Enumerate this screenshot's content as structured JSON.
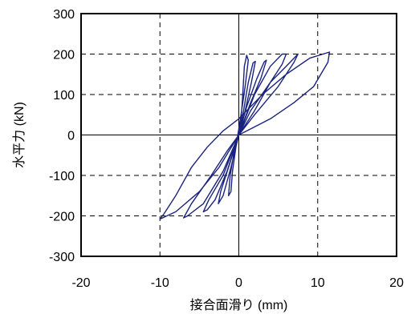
{
  "chart_data": {
    "type": "line",
    "title": "",
    "xlabel": "接合面滑り (mm)",
    "ylabel": "水平力 (kN)",
    "xlim": [
      -20,
      20
    ],
    "ylim": [
      -300,
      300
    ],
    "x_ticks": [
      -20,
      -10,
      0,
      10,
      20
    ],
    "y_ticks": [
      300,
      200,
      100,
      0,
      -100,
      -200,
      -300
    ],
    "x_tick_labels": [
      "-20",
      "-10",
      "0",
      "10",
      "20"
    ],
    "y_tick_labels": [
      "300",
      "200",
      "100",
      "0",
      "-100",
      "-200",
      "-300"
    ],
    "grid": "dashed",
    "legend": "none",
    "line_color": "#1a237e",
    "series": [
      {
        "values": [
          [
            0,
            0
          ],
          [
            0.3,
            40
          ],
          [
            0.5,
            100
          ],
          [
            0.7,
            170
          ],
          [
            1.0,
            197
          ],
          [
            1.2,
            185
          ],
          [
            0.8,
            120
          ],
          [
            0.2,
            40
          ],
          [
            -0.3,
            -20
          ],
          [
            -0.8,
            -90
          ],
          [
            -1.0,
            -140
          ],
          [
            -1.3,
            -150
          ],
          [
            -1.1,
            -100
          ],
          [
            -0.5,
            -30
          ],
          [
            0,
            0
          ],
          [
            0.6,
            60
          ],
          [
            1.2,
            130
          ],
          [
            1.8,
            178
          ],
          [
            2.1,
            182
          ],
          [
            1.6,
            130
          ],
          [
            0.8,
            60
          ],
          [
            0,
            0
          ],
          [
            -1.0,
            -80
          ],
          [
            -2.0,
            -150
          ],
          [
            -2.6,
            -170
          ],
          [
            -2.3,
            -140
          ],
          [
            -1.3,
            -80
          ],
          [
            0,
            0
          ],
          [
            1.0,
            70
          ],
          [
            2.3,
            140
          ],
          [
            3.2,
            180
          ],
          [
            3.5,
            185
          ],
          [
            2.8,
            140
          ],
          [
            1.5,
            80
          ],
          [
            0,
            0
          ],
          [
            -1.5,
            -90
          ],
          [
            -3.0,
            -160
          ],
          [
            -4.0,
            -185
          ],
          [
            -4.5,
            -190
          ],
          [
            -3.8,
            -160
          ],
          [
            -2.0,
            -100
          ],
          [
            0,
            0
          ],
          [
            2.0,
            100
          ],
          [
            4.0,
            170
          ],
          [
            5.5,
            200
          ],
          [
            6.0,
            200
          ],
          [
            5.5,
            175
          ],
          [
            4.0,
            130
          ],
          [
            2.0,
            60
          ],
          [
            0,
            0
          ],
          [
            -2.0,
            -90
          ],
          [
            -4.5,
            -170
          ],
          [
            -6.5,
            -200
          ],
          [
            -7.0,
            -205
          ],
          [
            -6.0,
            -170
          ],
          [
            -3.5,
            -100
          ],
          [
            -1.5,
            -40
          ],
          [
            0,
            0
          ],
          [
            1.5,
            60
          ],
          [
            4.0,
            130
          ],
          [
            6.0,
            170
          ],
          [
            7.0,
            190
          ],
          [
            7.5,
            200
          ],
          [
            7.0,
            180
          ],
          [
            5.0,
            120
          ],
          [
            2.0,
            50
          ],
          [
            0,
            0
          ],
          [
            -2.5,
            -80
          ],
          [
            -5.0,
            -140
          ],
          [
            -8.0,
            -190
          ],
          [
            -10.0,
            -208
          ],
          [
            -9.5,
            -195
          ],
          [
            -8.0,
            -150
          ],
          [
            -6.0,
            -80
          ],
          [
            -4.0,
            -30
          ],
          [
            -2.0,
            10
          ],
          [
            0,
            40
          ],
          [
            3.0,
            100
          ],
          [
            6.0,
            150
          ],
          [
            9.0,
            190
          ],
          [
            11.5,
            205
          ],
          [
            11.3,
            180
          ],
          [
            9.5,
            120
          ],
          [
            7.0,
            80
          ],
          [
            4.0,
            40
          ],
          [
            0,
            0
          ]
        ]
      }
    ]
  }
}
